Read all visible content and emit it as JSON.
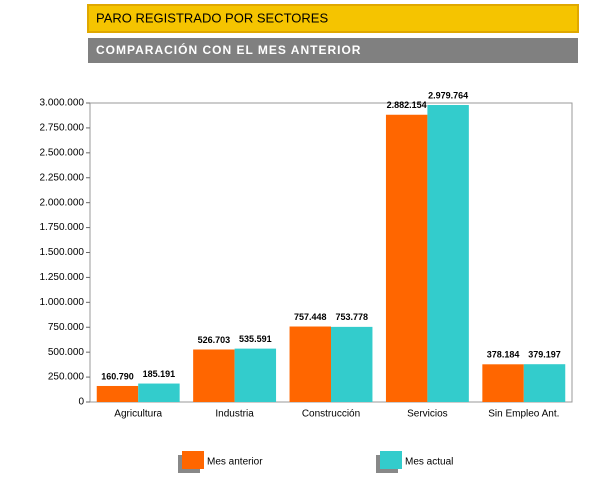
{
  "chart_data": {
    "type": "bar",
    "title": "PARO REGISTRADO POR SECTORES",
    "subtitle": "COMPARACIÓN CON EL MES ANTERIOR",
    "categories": [
      "Agricultura",
      "Industria",
      "Construcción",
      "Servicios",
      "Sin Empleo Ant."
    ],
    "series": [
      {
        "name": "Mes anterior",
        "color": "#ff6600",
        "values": [
          160790,
          526703,
          757448,
          2882154,
          378184
        ],
        "value_labels": [
          "160.790",
          "526.703",
          "757.448",
          "2.882.154",
          "378.184"
        ]
      },
      {
        "name": "Mes actual",
        "color": "#33cccc",
        "values": [
          185191,
          535591,
          753778,
          2979764,
          379197
        ],
        "value_labels": [
          "185.191",
          "535.591",
          "753.778",
          "2.979.764",
          "379.197"
        ]
      }
    ],
    "ylim": [
      0,
      3000000
    ],
    "yticks": [
      0,
      {
        "value": 250000,
        "label": "250.000"
      },
      {
        "value": 500000,
        "label": "500.000"
      },
      {
        "value": 750000,
        "label": "750.000"
      },
      {
        "value": 1000000,
        "label": "1.000.000"
      },
      {
        "value": 1250000,
        "label": "1.250.000"
      },
      {
        "value": 1500000,
        "label": "1.500.000"
      },
      {
        "value": 1750000,
        "label": "1.750.000"
      },
      {
        "value": 2000000,
        "label": "2.000.000"
      },
      {
        "value": 2250000,
        "label": "2.250.000"
      },
      {
        "value": 2500000,
        "label": "2.500.000"
      },
      {
        "value": 2750000,
        "label": "2.750.000"
      },
      {
        "value": 3000000,
        "label": "3.000.000"
      }
    ],
    "grid": false
  }
}
